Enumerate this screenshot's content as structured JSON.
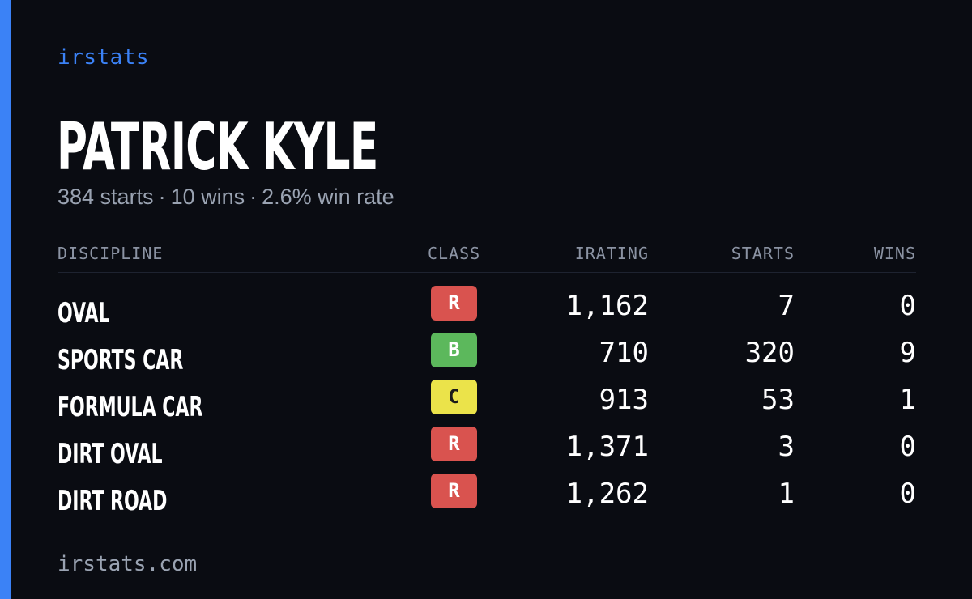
{
  "brand": "irstats",
  "player": {
    "name": "PATRICK KYLE",
    "summary": {
      "starts": "384 starts",
      "wins": "10 wins",
      "win_rate": "2.6% win rate",
      "separator": "·"
    }
  },
  "table": {
    "headers": {
      "discipline": "DISCIPLINE",
      "class": "CLASS",
      "irating": "IRATING",
      "starts": "STARTS",
      "wins": "WINS"
    },
    "rows": [
      {
        "discipline": "OVAL",
        "class": "R",
        "irating": "1,162",
        "starts": "7",
        "wins": "0"
      },
      {
        "discipline": "SPORTS CAR",
        "class": "B",
        "irating": "710",
        "starts": "320",
        "wins": "9"
      },
      {
        "discipline": "FORMULA CAR",
        "class": "C",
        "irating": "913",
        "starts": "53",
        "wins": "1"
      },
      {
        "discipline": "DIRT OVAL",
        "class": "R",
        "irating": "1,371",
        "starts": "3",
        "wins": "0"
      },
      {
        "discipline": "DIRT ROAD",
        "class": "R",
        "irating": "1,262",
        "starts": "1",
        "wins": "0"
      }
    ]
  },
  "class_colors": {
    "R": {
      "bg": "#d9534f",
      "fg": "#ffffff"
    },
    "B": {
      "bg": "#5cb85c",
      "fg": "#ffffff"
    },
    "C": {
      "bg": "#ebe34a",
      "fg": "#1a1a1a"
    }
  },
  "footer": "irstats.com",
  "colors": {
    "background": "#0a0c12",
    "accent": "#3b82f6",
    "muted_text": "#9aa3b2"
  }
}
